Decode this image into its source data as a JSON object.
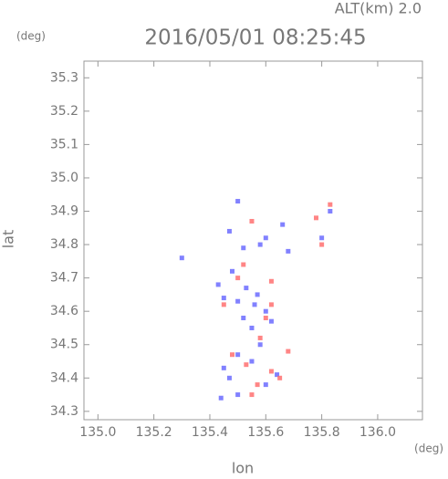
{
  "chart_data": {
    "type": "scatter",
    "title": "2016/05/01 08:25:45",
    "subtitle": "ALT(km) 2.0",
    "y_unit": "(deg)",
    "x_unit": "(deg)",
    "x_label": "lon",
    "y_label": "lat",
    "xlim": [
      134.95,
      136.16
    ],
    "ylim": [
      34.275,
      35.35
    ],
    "xticks": [
      {
        "value": 135,
        "label": "135.0"
      },
      135.2,
      135.4,
      135.6,
      135.8,
      {
        "value": 136,
        "label": "136.0"
      }
    ],
    "yticks": [
      34.3,
      34.4,
      34.5,
      34.6,
      34.7,
      34.8,
      34.9,
      {
        "value": 35,
        "label": "35.0"
      },
      35.1,
      35.2,
      35.3
    ],
    "series": [
      {
        "color": "#6b6bff",
        "x": [
          135.5,
          135.47,
          135.52,
          135.58,
          135.6,
          135.68,
          135.66,
          135.43,
          135.45,
          135.5,
          135.53,
          135.6,
          135.57,
          135.55,
          135.58,
          135.55,
          135.5,
          135.45,
          135.6,
          135.64,
          135.5,
          135.44,
          135.3,
          135.83,
          135.8,
          135.48,
          135.62,
          135.56,
          135.47,
          135.52
        ],
        "y": [
          34.93,
          34.84,
          34.79,
          34.8,
          34.82,
          34.78,
          34.86,
          34.68,
          34.64,
          34.63,
          34.67,
          34.6,
          34.65,
          34.55,
          34.5,
          34.45,
          34.47,
          34.43,
          34.38,
          34.41,
          34.35,
          34.34,
          34.76,
          34.9,
          34.82,
          34.72,
          34.57,
          34.62,
          34.4,
          34.58
        ]
      },
      {
        "color": "#ff7070",
        "x": [
          135.55,
          135.5,
          135.62,
          135.58,
          135.62,
          135.65,
          135.55,
          135.68,
          135.83,
          135.78,
          135.8,
          135.45,
          135.62,
          135.52,
          135.6,
          135.48,
          135.57,
          135.53
        ],
        "y": [
          34.87,
          34.7,
          34.62,
          34.52,
          34.42,
          34.4,
          34.35,
          34.48,
          34.92,
          34.88,
          34.8,
          34.62,
          34.69,
          34.74,
          34.58,
          34.47,
          34.38,
          34.44
        ]
      }
    ]
  }
}
